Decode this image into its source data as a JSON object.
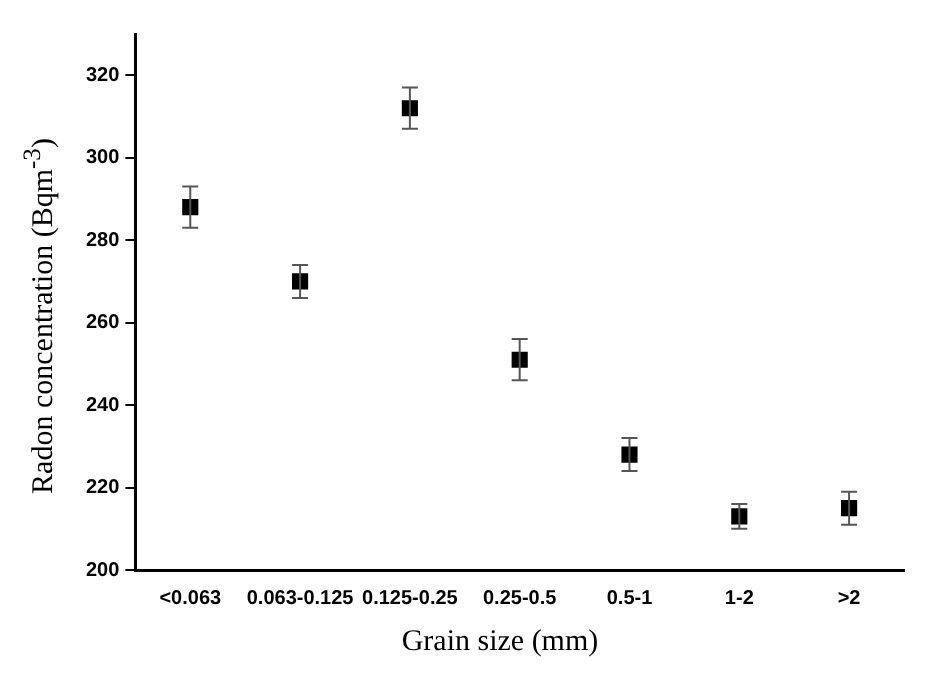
{
  "chart_data": {
    "type": "scatter",
    "xlabel": "Grain size (mm)",
    "ylabel": "Radon concentration (Bqm$^{-3}$)",
    "categories": [
      "<0.063",
      "0.063-0.125",
      "0.125-0.25",
      "0.25-0.5",
      "0.5-1",
      "1-2",
      ">2"
    ],
    "series": [
      {
        "color": "#000000",
        "values": [
          288,
          270,
          312,
          251,
          228,
          213,
          215
        ],
        "errors": [
          5,
          4,
          5,
          5,
          4,
          3,
          4
        ]
      }
    ],
    "ylim": [
      200,
      330
    ],
    "yticks": [
      200,
      220,
      240,
      260,
      280,
      300,
      320
    ],
    "marker": "square",
    "grid": false,
    "legend": false
  }
}
